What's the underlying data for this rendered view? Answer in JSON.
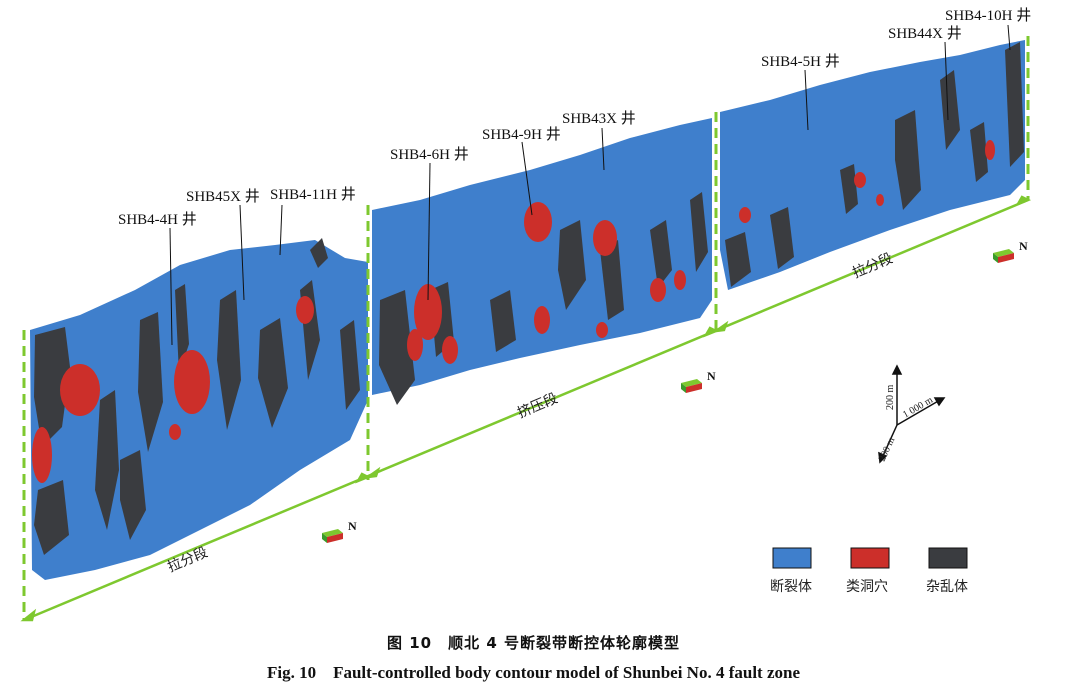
{
  "wells": [
    {
      "id": "w1",
      "label": "SHB4-4H 井"
    },
    {
      "id": "w2",
      "label": "SHB45X 井"
    },
    {
      "id": "w3",
      "label": "SHB4-11H 井"
    },
    {
      "id": "w4",
      "label": "SHB4-6H 井"
    },
    {
      "id": "w5",
      "label": "SHB4-9H 井"
    },
    {
      "id": "w6",
      "label": "SHB43X 井"
    },
    {
      "id": "w7",
      "label": "SHB4-5H 井"
    },
    {
      "id": "w8",
      "label": "SHB44X 井"
    },
    {
      "id": "w9",
      "label": "SHB4-10H 井"
    }
  ],
  "segments": [
    "拉分段",
    "挤压段",
    "拉分段"
  ],
  "north_label": "N",
  "scale": {
    "vertical": "200 m",
    "horizontal": "1 000 m",
    "depth": "200 m"
  },
  "legend": [
    {
      "label": "断裂体",
      "color": "#3f7fcc"
    },
    {
      "label": "类洞穴",
      "color": "#cc2f2a"
    },
    {
      "label": "杂乱体",
      "color": "#3a3c40"
    }
  ],
  "colors": {
    "fracture": "#3f7fcc",
    "cave": "#cc2f2a",
    "chaotic": "#3a3c40",
    "guide": "#7ec82f"
  },
  "caption": {
    "cn": "图 10　顺北 4 号断裂带断控体轮廓模型",
    "en": "Fig. 10　Fault-controlled body contour model of Shunbei No. 4 fault zone"
  }
}
